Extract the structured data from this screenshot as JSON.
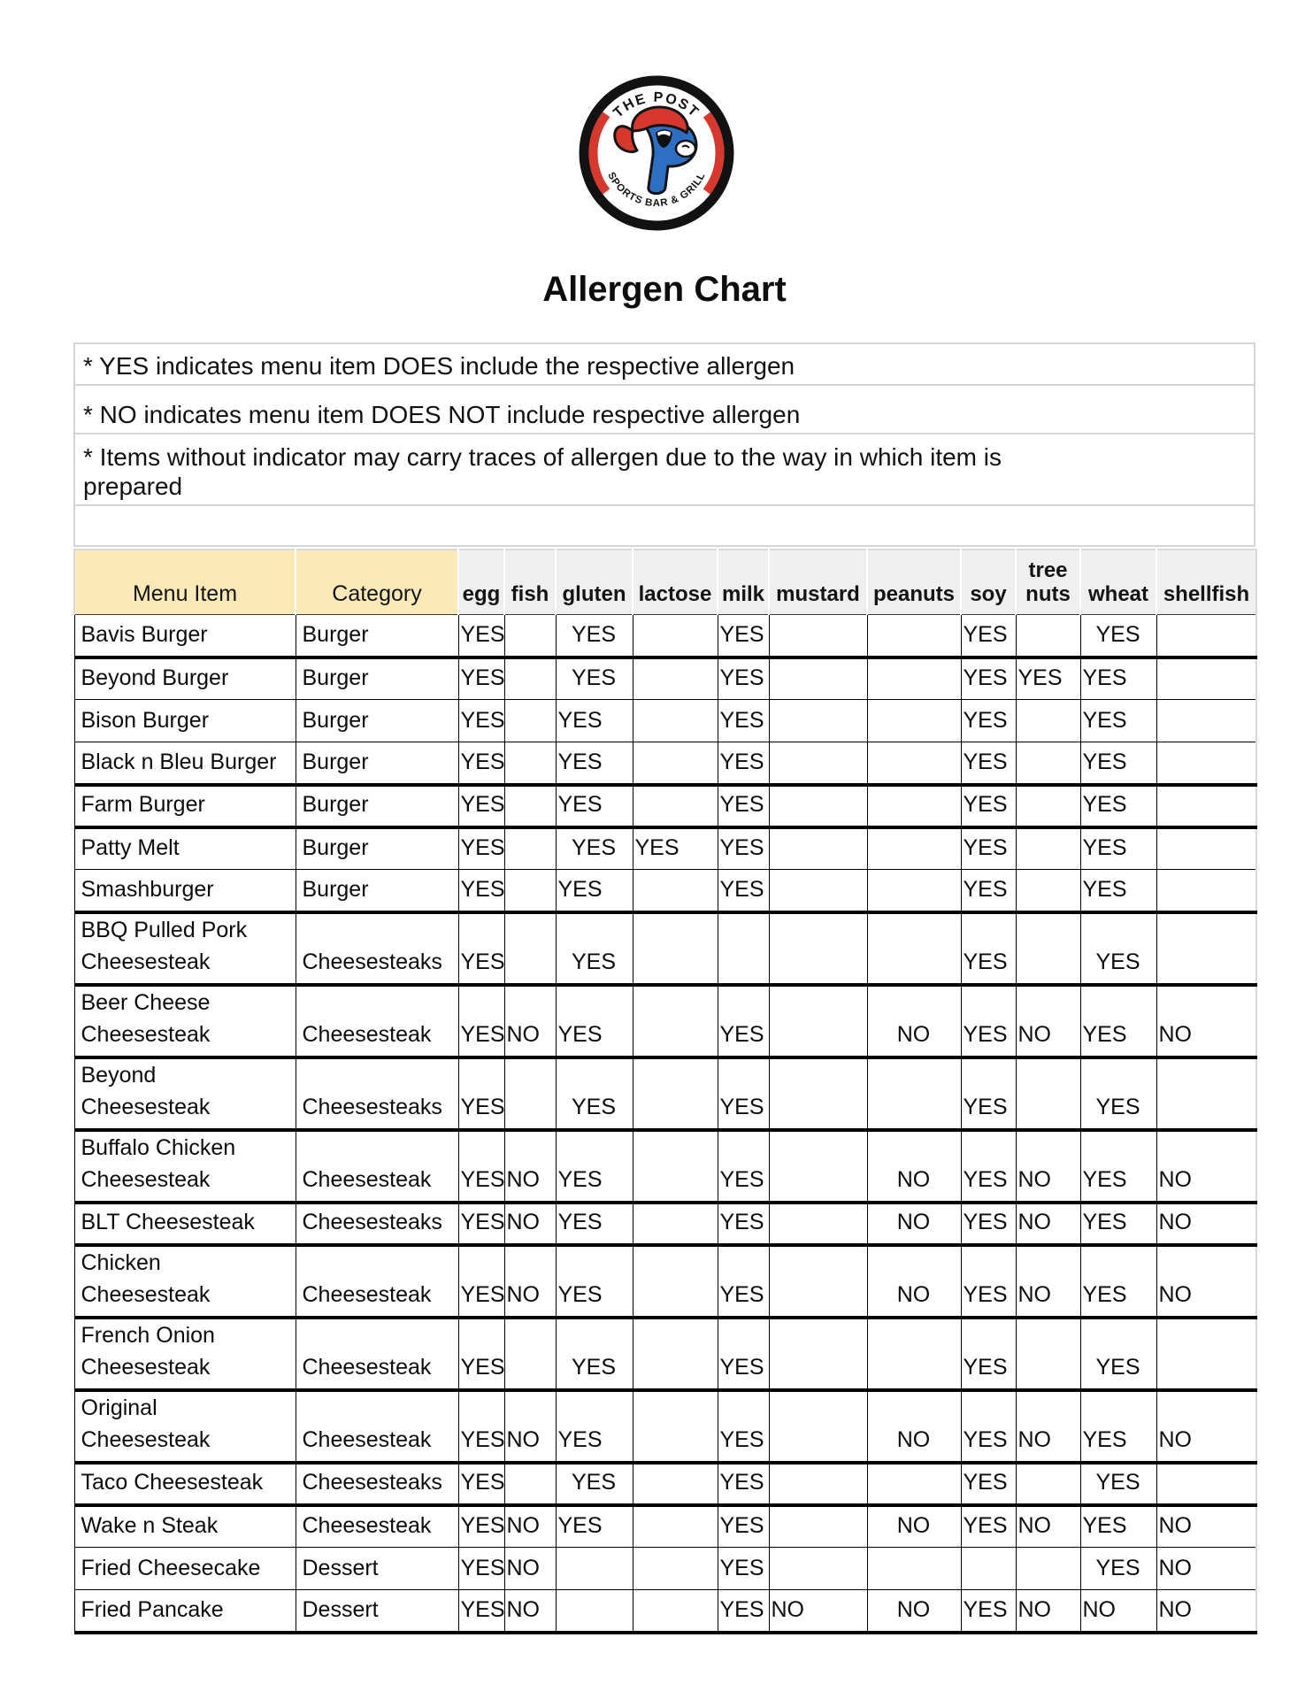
{
  "title": "Allergen Chart",
  "logo": {
    "top_text": "THE POST",
    "bottom_text": "SPORTS BAR & GRILL",
    "monogram": "P",
    "colors": {
      "ring": "#121212",
      "accent_red": "#D7382D",
      "monogram_blue": "#2F6FC3"
    }
  },
  "notes": [
    "* YES indicates menu item DOES include the respective allergen",
    "* NO indicates menu item DOES NOT include respective allergen",
    [
      "* Items without indicator may carry traces of allergen due to the way in which item is",
      "prepared"
    ]
  ],
  "colors": {
    "header_yellow": "#FCE9B8",
    "header_gray": "#EFEFEF",
    "border_gray": "#D9D9D9",
    "yes_no_text": "#0C0C0C"
  },
  "table": {
    "columns": [
      "Menu Item",
      "Category",
      "egg",
      "fish",
      "gluten",
      "lactose",
      "milk",
      "mustard",
      "peanuts",
      "soy",
      "tree nuts",
      "wheat",
      "shellfish"
    ],
    "rows": [
      {
        "item": [
          "Bavis Burger"
        ],
        "category": "Burger",
        "values": [
          "YES",
          "",
          "YES",
          "",
          "YES",
          "",
          "",
          "YES",
          "",
          "YES",
          ""
        ],
        "center": [
          2,
          9
        ],
        "thick": true
      },
      {
        "item": [
          "Beyond Burger"
        ],
        "category": "Burger",
        "values": [
          "YES",
          "",
          "YES",
          "",
          "YES",
          "",
          "",
          "YES",
          "YES",
          "YES",
          ""
        ],
        "center": [
          2
        ],
        "thick": false
      },
      {
        "item": [
          "Bison Burger"
        ],
        "category": "Burger",
        "values": [
          "YES",
          "",
          "YES",
          "",
          "YES",
          "",
          "",
          "YES",
          "",
          "YES",
          ""
        ],
        "center": [],
        "thick": false
      },
      {
        "item": [
          "Black n Bleu Burger"
        ],
        "category": "Burger",
        "values": [
          "YES",
          "",
          "YES",
          "",
          "YES",
          "",
          "",
          "YES",
          "",
          "YES",
          ""
        ],
        "center": [],
        "thick": true
      },
      {
        "item": [
          "Farm Burger"
        ],
        "category": "Burger",
        "values": [
          "YES",
          "",
          "YES",
          "",
          "YES",
          "",
          "",
          "YES",
          "",
          "YES",
          ""
        ],
        "center": [],
        "thick": true
      },
      {
        "item": [
          "Patty Melt"
        ],
        "category": "Burger",
        "values": [
          "YES",
          "",
          "YES",
          "YES",
          "YES",
          "",
          "",
          "YES",
          "",
          "YES",
          ""
        ],
        "center": [
          2
        ],
        "thick": false
      },
      {
        "item": [
          "Smashburger"
        ],
        "category": "Burger",
        "values": [
          "YES",
          "",
          "YES",
          "",
          "YES",
          "",
          "",
          "YES",
          "",
          "YES",
          ""
        ],
        "center": [],
        "thick": true
      },
      {
        "item": [
          "BBQ Pulled Pork",
          "Cheesesteak"
        ],
        "category": "Cheesesteaks",
        "values": [
          "YES",
          "",
          "YES",
          "",
          "",
          "",
          "",
          "YES",
          "",
          "YES",
          ""
        ],
        "center": [
          2,
          9
        ],
        "thick": true
      },
      {
        "item": [
          "Beer Cheese",
          "Cheesesteak"
        ],
        "category": "Cheesesteak",
        "values": [
          "YES",
          "NO",
          "YES",
          "",
          "YES",
          "",
          "NO",
          "YES",
          "NO",
          "YES",
          "NO"
        ],
        "center": [
          6
        ],
        "thick": true
      },
      {
        "item": [
          "Beyond",
          "Cheesesteak"
        ],
        "category": "Cheesesteaks",
        "values": [
          "YES",
          "",
          "YES",
          "",
          "YES",
          "",
          "",
          "YES",
          "",
          "YES",
          ""
        ],
        "center": [
          2,
          9
        ],
        "thick": true
      },
      {
        "item": [
          "Buffalo Chicken",
          "Cheesesteak"
        ],
        "category": "Cheesesteak",
        "values": [
          "YES",
          "NO",
          "YES",
          "",
          "YES",
          "",
          "NO",
          "YES",
          "NO",
          "YES",
          "NO"
        ],
        "center": [
          6
        ],
        "thick": true
      },
      {
        "item": [
          "BLT Cheesesteak"
        ],
        "category": "Cheesesteaks",
        "values": [
          "YES",
          "NO",
          "YES",
          "",
          "YES",
          "",
          "NO",
          "YES",
          "NO",
          "YES",
          "NO"
        ],
        "center": [
          6
        ],
        "thick": true
      },
      {
        "item": [
          "Chicken",
          "Cheesesteak"
        ],
        "category": "Cheesesteak",
        "values": [
          "YES",
          "NO",
          "YES",
          "",
          "YES",
          "",
          "NO",
          "YES",
          "NO",
          "YES",
          "NO"
        ],
        "center": [
          6
        ],
        "thick": true
      },
      {
        "item": [
          "French Onion",
          "Cheesesteak"
        ],
        "category": "Cheesesteak",
        "values": [
          "YES",
          "",
          "YES",
          "",
          "YES",
          "",
          "",
          "YES",
          "",
          "YES",
          ""
        ],
        "center": [
          2,
          9
        ],
        "thick": true
      },
      {
        "item": [
          "Original",
          "Cheesesteak"
        ],
        "category": "Cheesesteak",
        "values": [
          "YES",
          "NO",
          "YES",
          "",
          "YES",
          "",
          "NO",
          "YES",
          "NO",
          "YES",
          "NO"
        ],
        "center": [
          6
        ],
        "thick": true
      },
      {
        "item": [
          "Taco Cheesesteak"
        ],
        "category": "Cheesesteaks",
        "values": [
          "YES",
          "",
          "YES",
          "",
          "YES",
          "",
          "",
          "YES",
          "",
          "YES",
          ""
        ],
        "center": [
          2,
          9
        ],
        "thick": true
      },
      {
        "item": [
          "Wake n Steak"
        ],
        "category": "Cheesesteak",
        "values": [
          "YES",
          "NO",
          "YES",
          "",
          "YES",
          "",
          "NO",
          "YES",
          "NO",
          "YES",
          "NO"
        ],
        "center": [
          6
        ],
        "thick": false
      },
      {
        "item": [
          "Fried Cheesecake"
        ],
        "category": "Dessert",
        "values": [
          "YES",
          "NO",
          "",
          "",
          "YES",
          "",
          "",
          "",
          "",
          "YES",
          "NO"
        ],
        "center": [
          9
        ],
        "thick": false
      },
      {
        "item": [
          "Fried Pancake"
        ],
        "category": "Dessert",
        "values": [
          "YES",
          "NO",
          "",
          "",
          "YES",
          "NO",
          "NO",
          "YES",
          "NO",
          "NO",
          "NO"
        ],
        "center": [
          6
        ],
        "thick": true
      }
    ]
  }
}
